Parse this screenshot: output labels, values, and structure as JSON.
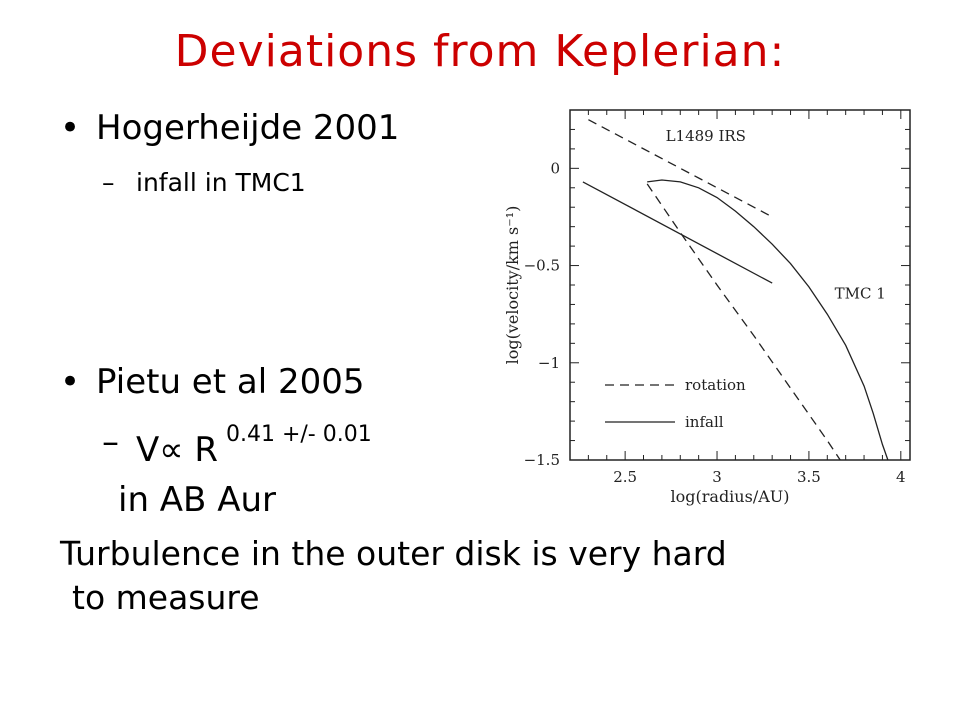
{
  "slide": {
    "title": "Deviations from Keplerian:",
    "bullet1": "Hogerheijde 2001",
    "bullet1_sub": "infall in TMC1",
    "bullet2": "Pietu et al 2005",
    "v_relation": "V∝ R",
    "v_exponent": "0.41 +/- 0.01",
    "v_location": "in AB Aur",
    "conclusion_line1": "Turbulence in the outer disk is very hard",
    "conclusion_line2": "to measure",
    "bullet_symbol": "•",
    "dash_symbol": "–"
  },
  "chart_data": {
    "type": "line",
    "xlabel": "log(radius/AU)",
    "ylabel": "log(velocity/km s⁻¹)",
    "xlim": [
      2.2,
      4.05
    ],
    "ylim": [
      -1.5,
      0.3
    ],
    "xticks": [
      2.5,
      3,
      3.5,
      4
    ],
    "yticks": [
      0,
      -0.5,
      -1,
      -1.5
    ],
    "xtick_labels": [
      "2.5",
      "3",
      "3.5",
      "4"
    ],
    "ytick_labels": [
      "0",
      "−0.5",
      "−1",
      "−1.5"
    ],
    "annotations": [
      {
        "text": "L1489 IRS",
        "x": 2.72,
        "y": 0.14
      },
      {
        "text": "TMC 1",
        "x": 3.64,
        "y": -0.67
      }
    ],
    "legend": {
      "placement": "lower-left",
      "entries": [
        {
          "label": "rotation",
          "style": "dashed"
        },
        {
          "label": "infall",
          "style": "solid"
        }
      ]
    },
    "series": [
      {
        "style": "dashed",
        "x": [
          2.3,
          3.3
        ],
        "y": [
          0.25,
          -0.25
        ]
      },
      {
        "style": "solid",
        "x": [
          2.27,
          3.3
        ],
        "y": [
          -0.07,
          -0.59
        ]
      },
      {
        "style": "dashed",
        "x": [
          2.62,
          2.8,
          3.0,
          3.2,
          3.4,
          3.6,
          3.67
        ],
        "y": [
          -0.08,
          -0.33,
          -0.6,
          -0.86,
          -1.13,
          -1.4,
          -1.5
        ]
      },
      {
        "style": "solid",
        "x": [
          2.62,
          2.7,
          2.8,
          2.9,
          3.0,
          3.1,
          3.2,
          3.3,
          3.4,
          3.5,
          3.6,
          3.7,
          3.8,
          3.85,
          3.9,
          3.93
        ],
        "y": [
          -0.07,
          -0.06,
          -0.07,
          -0.1,
          -0.15,
          -0.22,
          -0.3,
          -0.39,
          -0.49,
          -0.61,
          -0.75,
          -0.91,
          -1.12,
          -1.26,
          -1.42,
          -1.5
        ]
      }
    ]
  }
}
